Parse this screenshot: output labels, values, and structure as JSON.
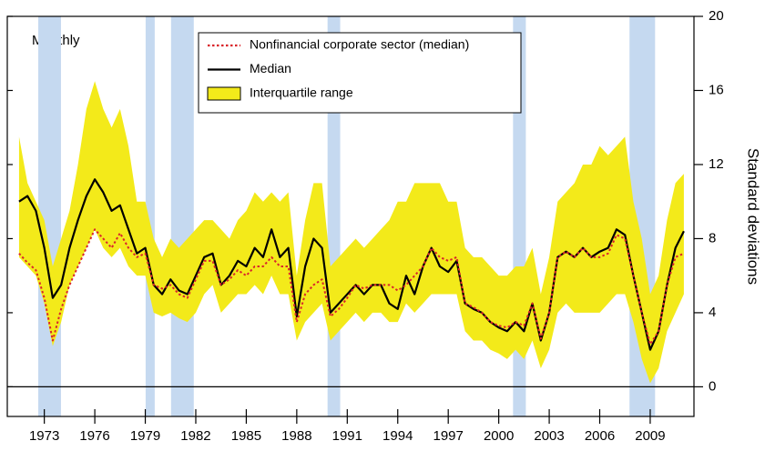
{
  "chart_data": {
    "type": "line",
    "annotation": "Monthly",
    "y_label": "Standard deviations",
    "legend": "upper center",
    "hline": 0,
    "shade_color": "#c5d9f0",
    "shaded_periods": [
      [
        1972.64,
        1973.99
      ],
      [
        1979.02,
        1979.56
      ],
      [
        1980.53,
        1981.88
      ],
      [
        1989.83,
        1990.58
      ],
      [
        2000.85,
        2001.61
      ],
      [
        2007.77,
        2009.29
      ]
    ],
    "xlim": [
      1970.8,
      2011.6
    ],
    "xticks": [
      1973,
      1976,
      1979,
      1982,
      1985,
      1988,
      1991,
      1994,
      1997,
      2000,
      2003,
      2006,
      2009
    ],
    "ylim": [
      -1.6,
      20
    ],
    "yticks": [
      0,
      4,
      8,
      12,
      16,
      20
    ],
    "x": [
      1971.5,
      1972,
      1972.5,
      1973,
      1973.5,
      1974,
      1974.5,
      1975,
      1975.5,
      1976,
      1976.5,
      1977,
      1977.5,
      1978,
      1978.5,
      1979,
      1979.5,
      1980,
      1980.5,
      1981,
      1981.5,
      1982,
      1982.5,
      1983,
      1983.5,
      1984,
      1984.5,
      1985,
      1985.5,
      1986,
      1986.5,
      1987,
      1987.5,
      1988,
      1988.5,
      1989,
      1989.5,
      1990,
      1990.5,
      1991,
      1991.5,
      1992,
      1992.5,
      1993,
      1993.5,
      1994,
      1994.5,
      1995,
      1995.5,
      1996,
      1996.5,
      1997,
      1997.5,
      1998,
      1998.5,
      1999,
      1999.5,
      2000,
      2000.5,
      2001,
      2001.5,
      2002,
      2002.5,
      2003,
      2003.5,
      2004,
      2004.5,
      2005,
      2005.5,
      2006,
      2006.5,
      2007,
      2007.5,
      2008,
      2008.5,
      2009,
      2009.5,
      2010,
      2010.5,
      2011
    ],
    "series": [
      {
        "name": "Nonfinancial corporate sector (median)",
        "color": "#d9262b",
        "dash": "dotted",
        "values": [
          7.2,
          6.7,
          6.3,
          4.8,
          2.5,
          4.2,
          5.5,
          6.5,
          7.5,
          8.5,
          8,
          7.5,
          8.3,
          7.5,
          7,
          7.2,
          5.5,
          5.3,
          5.5,
          5,
          4.8,
          5.8,
          6.8,
          6.8,
          5.5,
          5.8,
          6.3,
          6,
          6.5,
          6.5,
          7,
          6.5,
          6.5,
          3.5,
          5,
          5.5,
          5.8,
          3.8,
          4.2,
          4.8,
          5.5,
          5.3,
          5.5,
          5.5,
          5.5,
          5.2,
          5.5,
          6,
          6.5,
          7.5,
          7,
          6.8,
          7,
          4.5,
          4.3,
          4,
          3.5,
          3.3,
          3.2,
          3.5,
          3.3,
          4.5,
          2.6,
          4,
          7,
          7.3,
          7,
          7.5,
          7,
          7,
          7.2,
          8.2,
          8,
          6,
          4,
          2.3,
          3,
          5.5,
          7,
          7.2
        ]
      },
      {
        "name": "Median",
        "color": "#000000",
        "values": [
          10,
          10.3,
          9.5,
          7.5,
          4.8,
          5.5,
          7.5,
          9,
          10.3,
          11.2,
          10.5,
          9.5,
          9.8,
          8.5,
          7.2,
          7.5,
          5.5,
          5,
          5.8,
          5.2,
          5,
          6,
          7,
          7.2,
          5.5,
          6,
          6.8,
          6.5,
          7.5,
          7,
          8.5,
          7,
          7.5,
          3.8,
          6.5,
          8,
          7.5,
          4,
          4.5,
          5,
          5.5,
          5,
          5.5,
          5.5,
          4.5,
          4.2,
          6,
          5,
          6.5,
          7.5,
          6.5,
          6.2,
          6.8,
          4.5,
          4.2,
          4,
          3.5,
          3.2,
          3,
          3.5,
          3,
          4.5,
          2.5,
          4,
          7,
          7.3,
          7,
          7.5,
          7,
          7.3,
          7.5,
          8.5,
          8.2,
          6,
          4,
          2,
          3,
          5.5,
          7.5,
          8.4
        ]
      },
      {
        "name": "Interquartile range",
        "color": "#f3ea1a",
        "low": [
          7,
          6.5,
          6,
          4.5,
          2.2,
          3.5,
          5.5,
          6.5,
          7.5,
          8.5,
          7.5,
          7,
          7.5,
          6.5,
          6,
          6,
          4,
          3.8,
          4,
          3.7,
          3.5,
          4,
          5,
          5.5,
          4,
          4.5,
          5,
          5,
          5.5,
          5,
          6,
          5,
          5,
          2.5,
          3.5,
          4,
          4.5,
          2.5,
          3,
          3.5,
          4,
          3.5,
          4,
          4,
          3.5,
          3.5,
          4.5,
          4,
          4.5,
          5,
          5,
          5,
          5,
          3,
          2.5,
          2.5,
          2,
          1.8,
          1.5,
          2,
          1.5,
          2.5,
          1,
          2,
          4,
          4.5,
          4,
          4,
          4,
          4,
          4.5,
          5,
          5,
          3.5,
          1.5,
          0.2,
          1,
          3,
          4,
          5
        ],
        "high": [
          13.5,
          11,
          10,
          9,
          6.5,
          8,
          9.5,
          12,
          15,
          16.5,
          15,
          14,
          15,
          13,
          10,
          10,
          8,
          7,
          8,
          7.5,
          8,
          8.5,
          9,
          9,
          8.5,
          8,
          9,
          9.5,
          10.5,
          10,
          10.5,
          10,
          10.5,
          6,
          9,
          11,
          11,
          6.5,
          7,
          7.5,
          8,
          7.5,
          8,
          8.5,
          9,
          10,
          10,
          11,
          11,
          11,
          11,
          10,
          10,
          7.5,
          7,
          7,
          6.5,
          6,
          6,
          6.5,
          6.5,
          7.5,
          5,
          7,
          10,
          10.5,
          11,
          12,
          12,
          13,
          12.5,
          13,
          13.5,
          10,
          8,
          5,
          6,
          9,
          11,
          11.5
        ]
      }
    ]
  }
}
